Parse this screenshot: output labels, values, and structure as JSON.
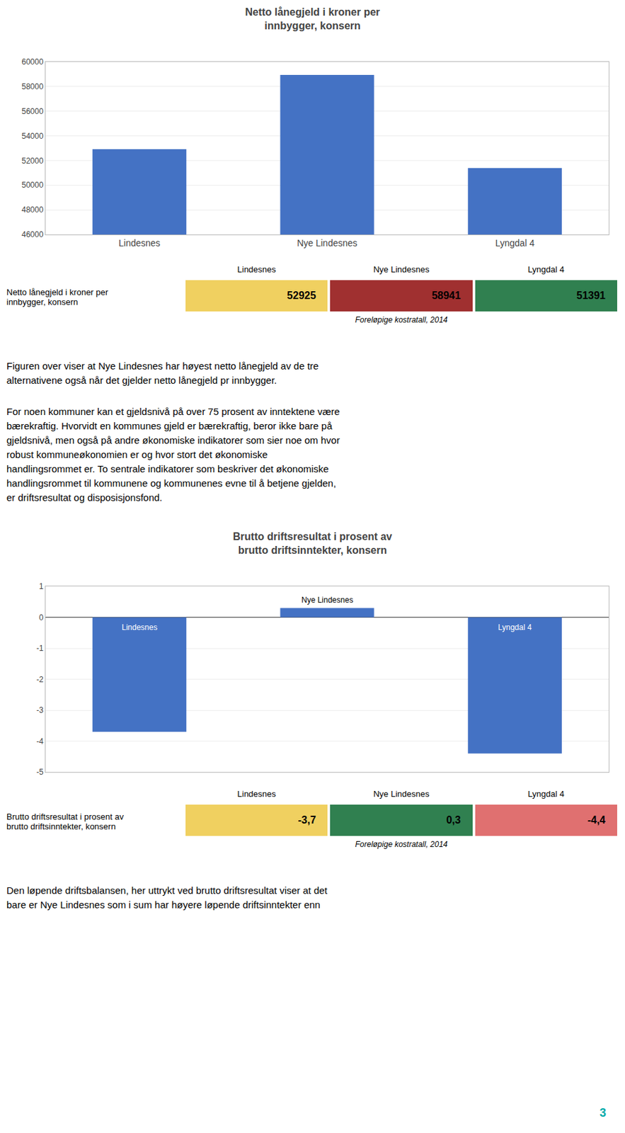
{
  "chart_data": [
    {
      "type": "bar",
      "title": "Netto lånegjeld i kroner per\ninnbygger, konsern",
      "categories": [
        "Lindesnes",
        "Nye Lindesnes",
        "Lyngdal 4"
      ],
      "values": [
        52925,
        58941,
        51391
      ],
      "color": "#4472C4",
      "ylim": [
        46000,
        60000
      ],
      "yticks": [
        46000,
        48000,
        50000,
        52000,
        54000,
        56000,
        58000,
        60000
      ],
      "grid": true
    },
    {
      "type": "table",
      "title": "Netto lånegjeld i kroner per\ninnbygger, konsern",
      "categories": [
        "Lindesnes",
        "Nye Lindesnes",
        "Lyngdal 4"
      ],
      "values": [
        52925,
        58941,
        51391
      ],
      "colors": [
        "#F0D060",
        "#A03030",
        "#308050"
      ],
      "annotations": [
        "Foreløpige kostratall, 2014"
      ]
    },
    {
      "type": "bar",
      "title": "Brutto driftsresultat i prosent av\nbrutto driftsinntekter, konsern",
      "categories": [
        "Lindesnes",
        "Nye Lindesnes",
        "Lyngdal 4"
      ],
      "values": [
        -3.7,
        0.3,
        -4.4
      ],
      "color": "#4472C4",
      "ylim": [
        -5,
        1
      ],
      "yticks": [
        -5,
        -4,
        -3,
        -2,
        -1,
        0,
        1
      ],
      "grid": true,
      "tick_labels": "y"
    },
    {
      "type": "table",
      "title": "Brutto driftsresultat i prosent av\nbrutto driftsinntekter, konsern",
      "categories": [
        "Lindesnes",
        "Nye Lindesnes",
        "Lyngdal 4"
      ],
      "values": [
        -3.7,
        0.3,
        -4.4
      ],
      "value_labels": [
        "-3,7",
        "0,3",
        "-4,4"
      ],
      "colors": [
        "#F0D060",
        "#308050",
        "#E07070"
      ],
      "annotations": [
        "Foreløpige kostratall, 2014"
      ]
    }
  ],
  "annotations": [
    "Figuren over viser at Nye Lindesnes har høyest netto lånegjeld av de tre\nalternativene også når det gjelder netto lånegjeld pr innbygger.",
    "For noen kommuner kan et gjeldsnivå på over 75 prosent av inntektene være\nbærekraftig. Hvorvidt en kommunes gjeld er bærekraftig, beror ikke bare på\ngjeldsnivå, men også på andre økonomiske indikatorer som sier noe om hvor\nrobust kommuneøkonomien er og hvor stort det økonomiske\nhandlingsrommet er. To sentrale indikatorer som beskriver det økonomiske\nhandlingsrommet til kommunene og kommunenes evne til å betjene gjelden,\ner driftsresultat og disposisjonsfond.",
    "Den løpende driftsbalansen, her uttrykt ved brutto driftsresultat viser at det\nbare er Nye Lindesnes som i sum har høyere løpende driftsinntekter enn",
    "3"
  ]
}
